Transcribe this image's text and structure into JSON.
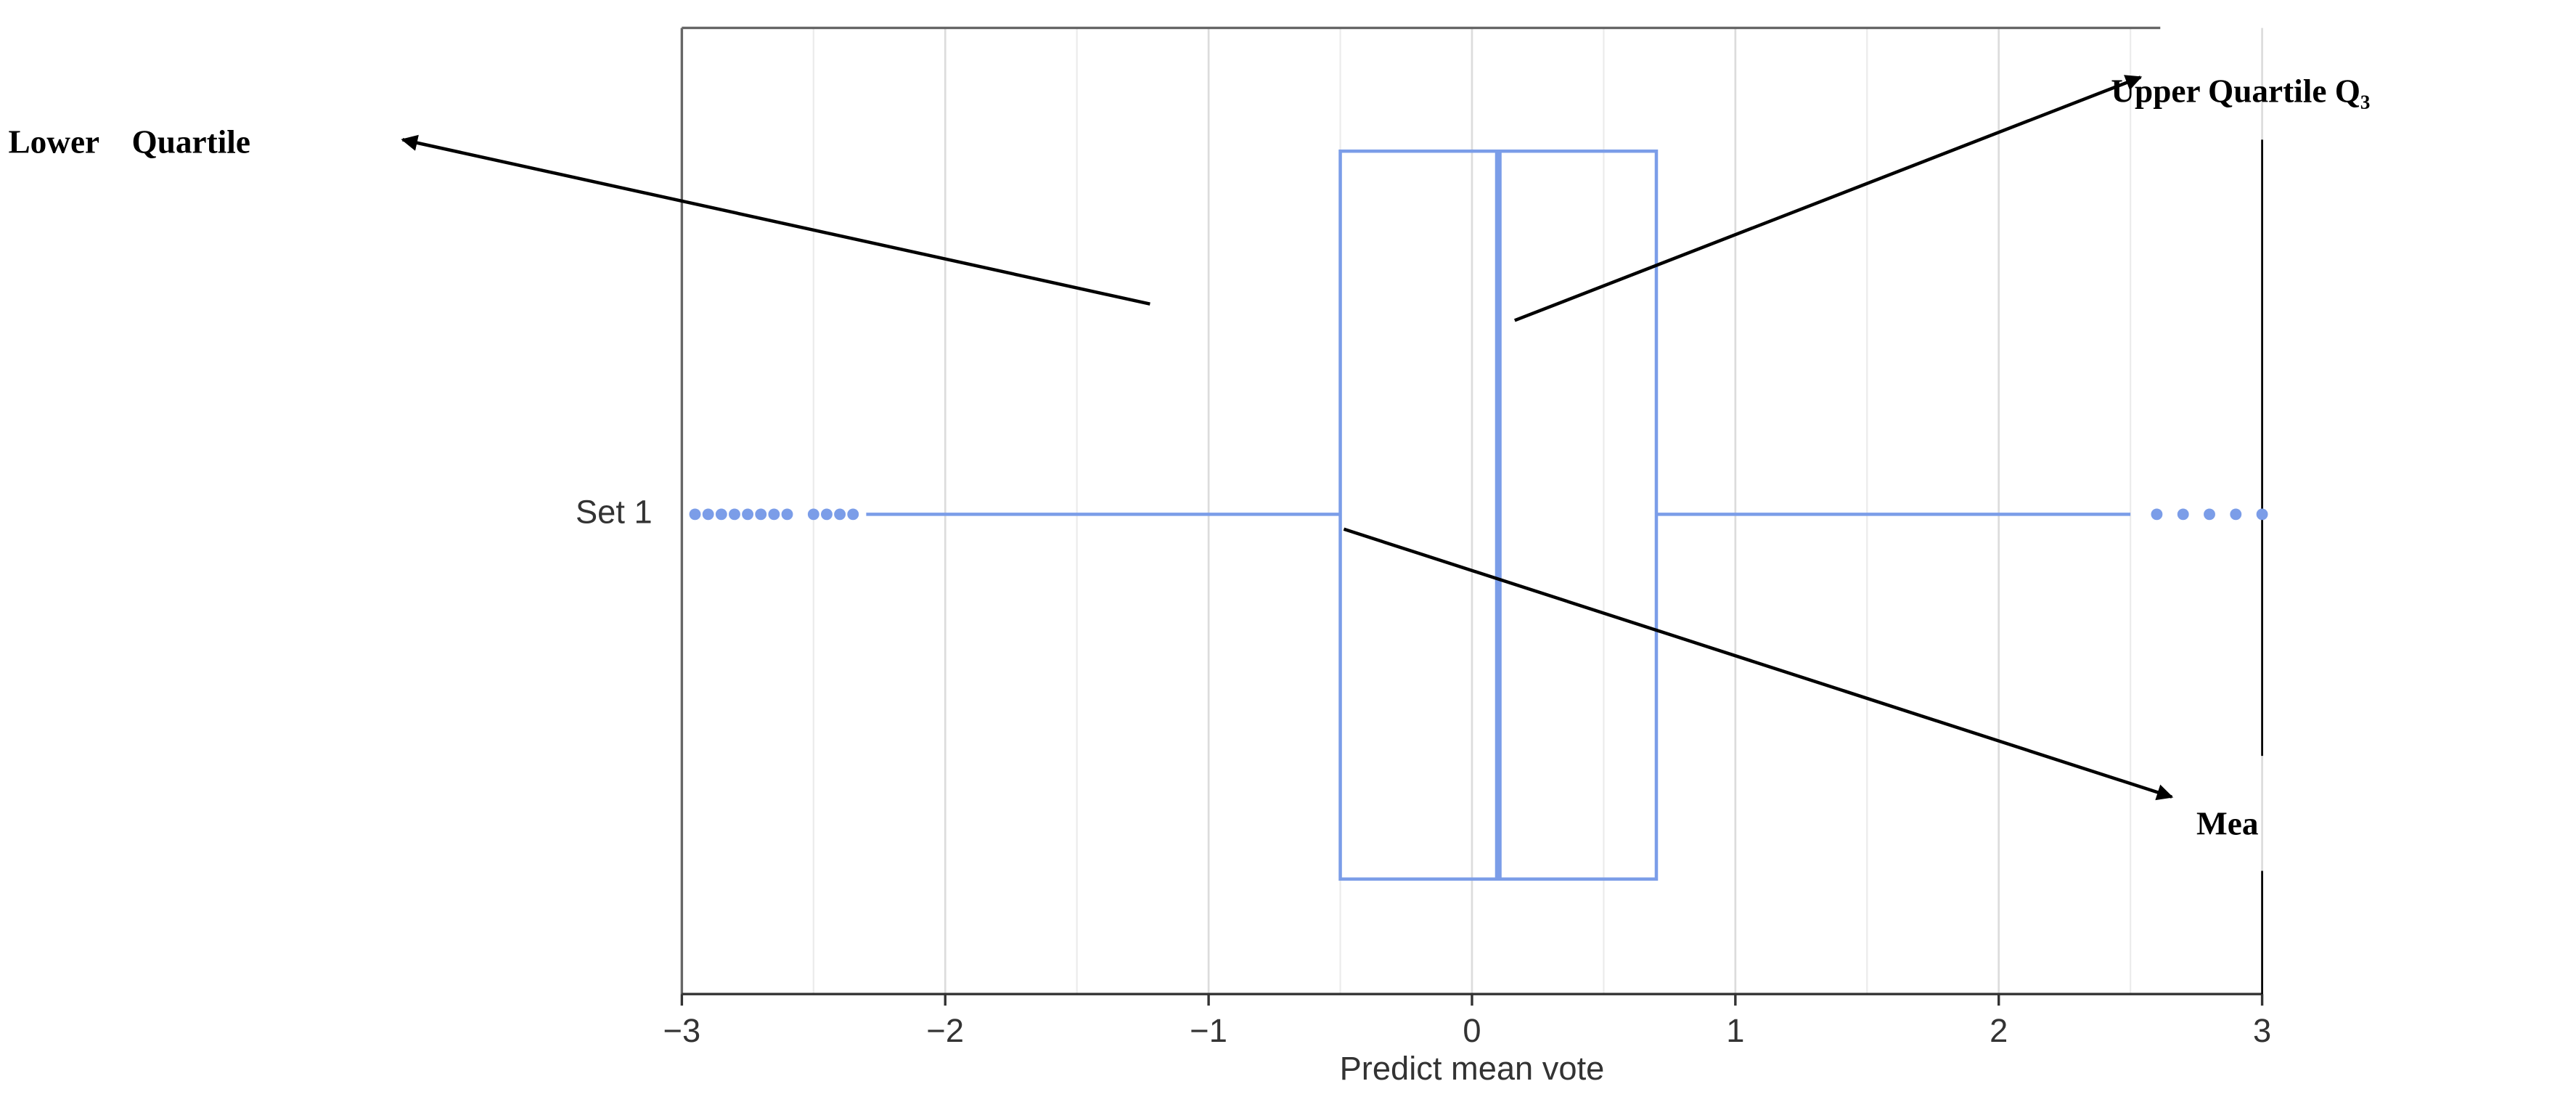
{
  "chart_data": {
    "type": "box",
    "xlabel": "Predict mean vote",
    "categories": [
      "Set 1"
    ],
    "boxes": [
      {
        "q1": -0.5,
        "median": 0.1,
        "q3": 0.7,
        "whisker_low": -2.3,
        "whisker_high": 2.5,
        "outliers": [
          -2.95,
          -2.9,
          -2.85,
          -2.8,
          -2.75,
          -2.7,
          -2.65,
          -2.6,
          -2.5,
          -2.45,
          -2.4,
          -2.35,
          2.6,
          2.7,
          2.8,
          2.9,
          3
        ]
      }
    ],
    "color": "#7b9de8",
    "xlim": [
      -3,
      3
    ],
    "xticks": [
      {
        "value": -3,
        "label": "−3"
      },
      {
        "value": -2,
        "label": "−2"
      },
      {
        "value": -1,
        "label": "−1"
      },
      0,
      1,
      2,
      3
    ],
    "xminorticks": [
      -2.5,
      -1.5,
      -0.5,
      0.5,
      1.5,
      2.5
    ],
    "grid": true,
    "annotations": [
      "Lower    Quartile",
      "Upper Quartile Q₃",
      "Mea"
    ]
  }
}
